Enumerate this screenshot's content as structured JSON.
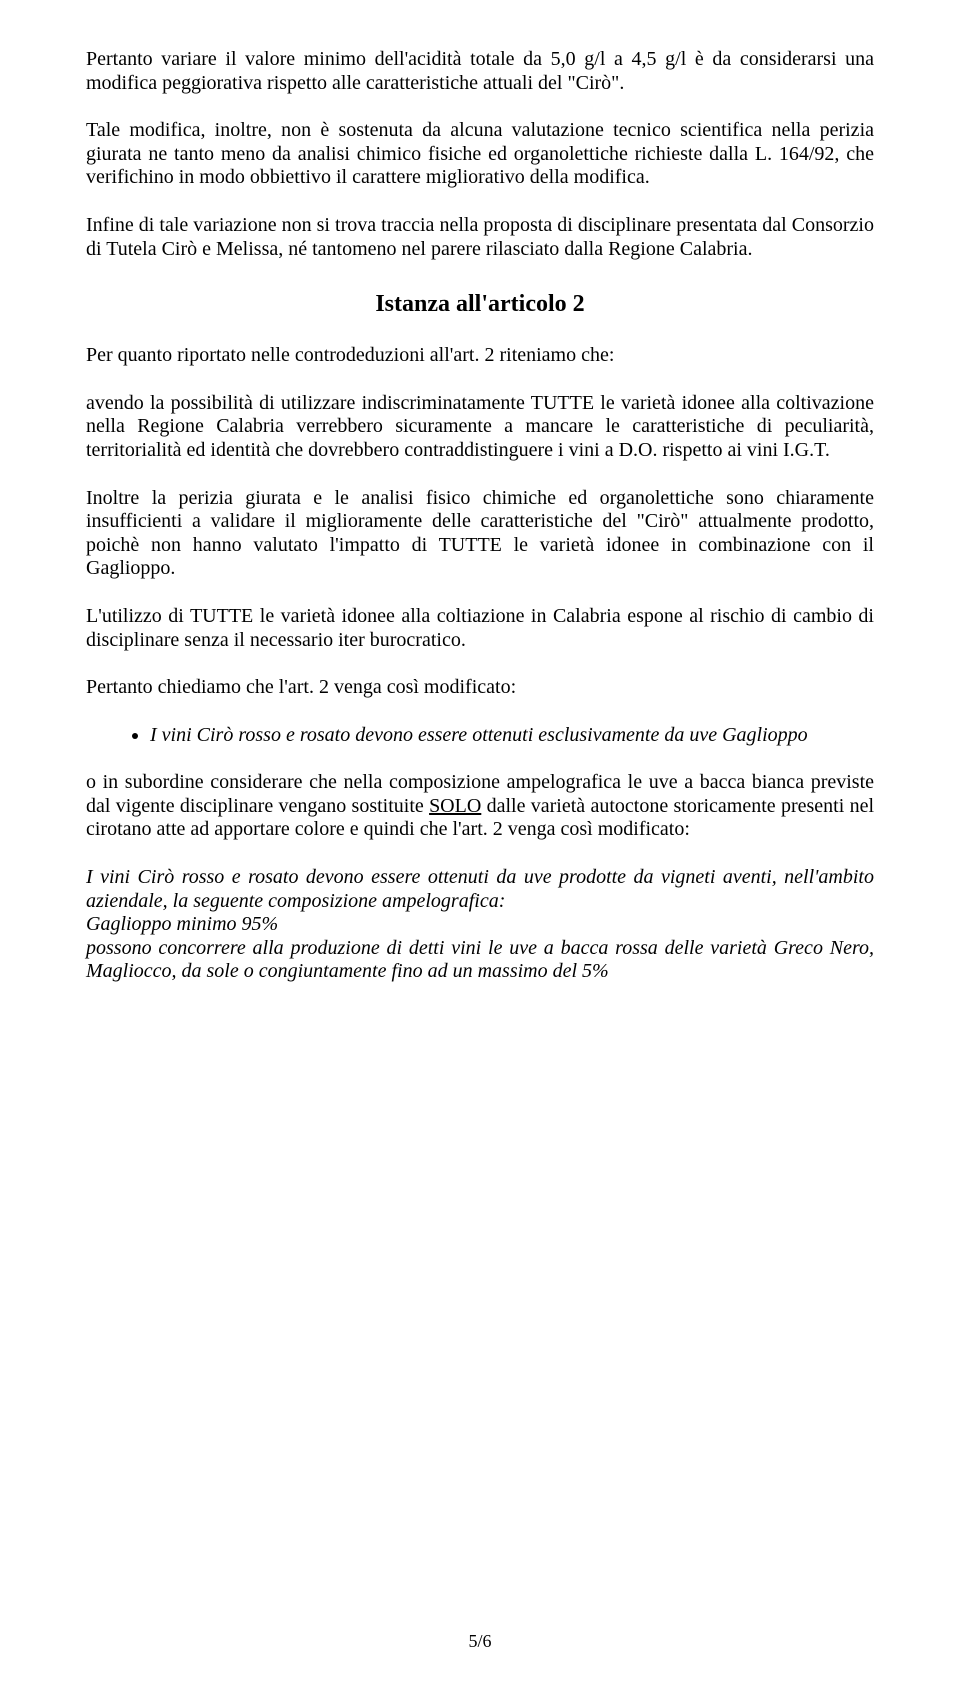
{
  "p1": "Pertanto variare il valore minimo dell'acidità totale da 5,0 g/l a 4,5 g/l è da considerarsi una modifica peggiorativa rispetto alle caratteristiche attuali del \"Cirò\".",
  "p2": "Tale modifica, inoltre, non è sostenuta da alcuna valutazione tecnico scientifica nella perizia giurata ne tanto meno da  analisi chimico fisiche ed organolettiche richieste dalla L. 164/92, che verifichino in modo obbiettivo il carattere migliorativo della modifica.",
  "p3": "Infine di tale variazione non si trova traccia nella proposta di disciplinare presentata dal Consorzio di Tutela Cirò e Melissa, né tantomeno nel parere rilasciato dalla Regione Calabria.",
  "h1": "Istanza all'articolo 2",
  "p4": "Per quanto riportato nelle controdeduzioni all'art. 2 riteniamo che:",
  "p5": "avendo la possibilità di utilizzare indiscriminatamente TUTTE le varietà idonee alla coltivazione nella Regione Calabria verrebbero sicuramente a mancare le caratteristiche di peculiarità, territorialità ed identità che dovrebbero contraddistinguere i vini a D.O. rispetto ai vini I.G.T.",
  "p6": "Inoltre la perizia giurata e le analisi fisico chimiche ed organolettiche sono chiaramente insufficienti a validare il miglioramente delle caratteristiche del \"Cirò\" attualmente prodotto, poichè non hanno  valutato l'impatto di TUTTE le varietà idonee in combinazione con il Gaglioppo.",
  "p7": "L'utilizzo di TUTTE le varietà idonee alla coltiazione in Calabria espone al rischio di cambio di disciplinare senza il necessario iter burocratico.",
  "p8": "Pertanto chiediamo che l'art. 2 venga così modificato:",
  "bullet1": "I vini Cirò rosso e rosato devono essere ottenuti esclusivamente da uve Gaglioppo",
  "p9_pre": "o in subordine considerare che nella composizione ampelografica le uve a bacca bianca previste dal vigente disciplinare vengano sostituite ",
  "p9_u": "SOLO",
  "p9_post": " dalle varietà autoctone storicamente presenti nel cirotano atte ad apportare colore e quindi che l'art. 2 venga così modificato:",
  "p10a": "I vini Cirò rosso e rosato devono essere ottenuti da uve prodotte da vigneti aventi, nell'ambito aziendale, la seguente composizione ampelografica:",
  "p10b": "Gaglioppo minimo 95%",
  "p10c": "possono concorrere alla produzione di detti vini le uve a bacca rossa delle varietà Greco Nero, Magliocco, da sole o congiuntamente fino ad un massimo del 5%",
  "footer": "5/6"
}
